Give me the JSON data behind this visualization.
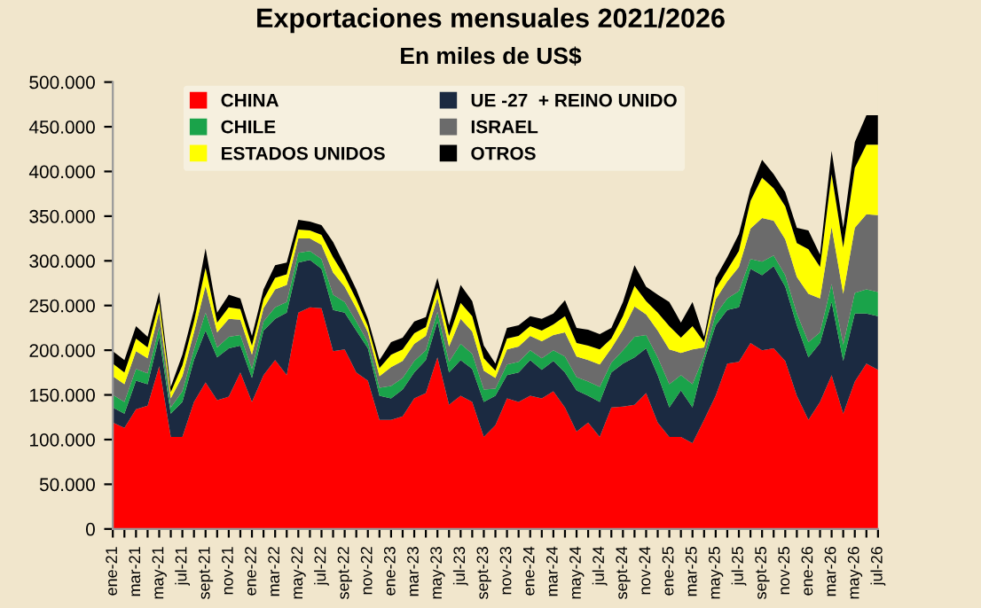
{
  "chart_data": {
    "type": "area",
    "stacked": true,
    "title": "Exportaciones mensuales 2021/2026",
    "subtitle": "En miles de US$",
    "categories": [
      "ene-21",
      null,
      "mar-21",
      null,
      "may-21",
      null,
      "jul-21",
      null,
      "sept-21",
      null,
      "nov-21",
      null,
      "ene-22",
      null,
      "mar-22",
      null,
      "may-22",
      null,
      "jul-22",
      null,
      "sept-22",
      null,
      "nov-22",
      null,
      "ene-23",
      null,
      "mar-23",
      null,
      "may-23",
      null,
      "jul-23",
      null,
      "sept-23",
      null,
      "nov-23",
      null,
      "ene-24",
      null,
      "mar-24",
      null,
      "may-24",
      null,
      "jul-24",
      null,
      "sept-24",
      null,
      "nov-24",
      null,
      "ene-25",
      null,
      "mar-25",
      null,
      "may-25",
      null,
      "jul-25",
      null,
      "sept-25",
      null,
      "nov-25",
      null,
      "ene-26",
      null,
      "mar-26",
      null,
      "may-26",
      null,
      "jul-26"
    ],
    "series": [
      {
        "name": "CHINA",
        "color": "#ff0000",
        "values": [
          119000,
          113000,
          134000,
          138000,
          182000,
          103000,
          103000,
          142000,
          164000,
          144000,
          148000,
          175000,
          142000,
          172000,
          189000,
          172000,
          242000,
          248000,
          247000,
          199000,
          201000,
          175000,
          166000,
          122000,
          122000,
          126000,
          146000,
          152000,
          192000,
          139000,
          149000,
          142000,
          103000,
          116000,
          146000,
          142000,
          149000,
          146000,
          154000,
          136000,
          109000,
          119000,
          103000,
          136000,
          137000,
          139000,
          152000,
          119000,
          103000,
          103000,
          96000,
          122000,
          149000,
          185000,
          187000,
          208000,
          200000,
          202000,
          188000,
          149000,
          122000,
          142000,
          172000,
          129000,
          165000,
          185000,
          178000
        ]
      },
      {
        "name": "UE -27  + REINO UNIDO",
        "color": "#1b2a41",
        "values": [
          17000,
          16000,
          32000,
          24000,
          33000,
          26000,
          39000,
          47000,
          58000,
          48000,
          54000,
          30000,
          27000,
          50000,
          46000,
          70000,
          56000,
          53000,
          44000,
          46000,
          41000,
          47000,
          36000,
          27000,
          24000,
          30000,
          29000,
          37000,
          40000,
          36000,
          40000,
          37000,
          39000,
          33000,
          26000,
          33000,
          40000,
          32000,
          34000,
          39000,
          46000,
          30000,
          39000,
          39000,
          48000,
          53000,
          50000,
          53000,
          33000,
          52000,
          40000,
          66000,
          79000,
          60000,
          61000,
          83000,
          84000,
          92000,
          83000,
          79000,
          70000,
          66000,
          82000,
          59000,
          76000,
          56000,
          60000
        ]
      },
      {
        "name": "CHILE",
        "color": "#1aa34a",
        "values": [
          14000,
          13000,
          13000,
          12000,
          11000,
          7000,
          12000,
          12000,
          20000,
          11000,
          13000,
          12000,
          10000,
          10000,
          13000,
          12000,
          11000,
          10000,
          11000,
          17000,
          12000,
          10000,
          7000,
          9000,
          14000,
          13000,
          13000,
          11000,
          11000,
          12000,
          18000,
          17000,
          14000,
          8000,
          12000,
          12000,
          11000,
          13000,
          12000,
          18000,
          15000,
          16000,
          17000,
          11000,
          15000,
          23000,
          15000,
          20000,
          26000,
          17000,
          26000,
          6000,
          12000,
          13000,
          18000,
          11000,
          15000,
          12000,
          13000,
          13000,
          17000,
          12000,
          20000,
          18000,
          23000,
          27000,
          27000
        ]
      },
      {
        "name": "ISRAEL",
        "color": "#6b6b6b",
        "values": [
          21000,
          20000,
          20000,
          17000,
          17000,
          10000,
          17000,
          19000,
          30000,
          17000,
          20000,
          17000,
          16000,
          15000,
          20000,
          19000,
          16000,
          14000,
          16000,
          25000,
          17000,
          15000,
          11000,
          13000,
          21000,
          19000,
          19000,
          16000,
          16000,
          17000,
          28000,
          25000,
          21000,
          12000,
          17000,
          17000,
          16000,
          19000,
          17000,
          27000,
          23000,
          24000,
          25000,
          16000,
          23000,
          34000,
          23000,
          30000,
          39000,
          25000,
          39000,
          9000,
          17000,
          19000,
          27000,
          34000,
          49000,
          39000,
          40000,
          41000,
          54000,
          38000,
          64000,
          57000,
          73000,
          84000,
          86000
        ]
      },
      {
        "name": "ESTADOS UNIDOS",
        "color": "#ffff00",
        "values": [
          14000,
          13000,
          14000,
          12000,
          11000,
          7000,
          12000,
          12000,
          20000,
          11000,
          13000,
          12000,
          10000,
          10000,
          13000,
          12000,
          10000,
          9000,
          11000,
          17000,
          12000,
          10000,
          7000,
          9000,
          14000,
          13000,
          12000,
          10000,
          11000,
          12000,
          18000,
          17000,
          14000,
          8000,
          12000,
          12000,
          11000,
          12000,
          12000,
          18000,
          15000,
          16000,
          17000,
          11000,
          15000,
          23000,
          15000,
          20000,
          26000,
          17000,
          26000,
          6000,
          12000,
          13000,
          18000,
          31000,
          45000,
          36000,
          37000,
          38000,
          50000,
          35000,
          59000,
          52000,
          67000,
          78000,
          79000
        ]
      },
      {
        "name": "OTROS",
        "color": "#000000",
        "values": [
          14000,
          14000,
          14000,
          12000,
          11000,
          6000,
          12000,
          13000,
          22000,
          11000,
          14000,
          12000,
          11000,
          11000,
          14000,
          13000,
          11000,
          10000,
          11000,
          17000,
          12000,
          11000,
          8000,
          9000,
          14000,
          13000,
          13000,
          11000,
          11000,
          12000,
          20000,
          17000,
          14000,
          8000,
          12000,
          12000,
          11000,
          13000,
          12000,
          18000,
          17000,
          18000,
          17000,
          12000,
          16000,
          23000,
          16000,
          20000,
          27000,
          17000,
          27000,
          6000,
          12000,
          14000,
          19000,
          13000,
          20000,
          16000,
          16000,
          17000,
          21000,
          14000,
          26000,
          22000,
          29000,
          33000,
          33000
        ]
      }
    ],
    "ylim": [
      0,
      500000
    ],
    "yticks": [
      0,
      {
        "value": 50000,
        "label": "50.000"
      },
      {
        "value": 100000,
        "label": "100.000"
      },
      {
        "value": 150000,
        "label": "150.000"
      },
      {
        "value": 200000,
        "label": "200.000"
      },
      {
        "value": 250000,
        "label": "250.000"
      },
      {
        "value": 300000,
        "label": "300.000"
      },
      {
        "value": 350000,
        "label": "350.000"
      },
      {
        "value": 400000,
        "label": "400.000"
      },
      {
        "value": 450000,
        "label": "450.000"
      },
      {
        "value": 500000,
        "label": "500.000"
      }
    ],
    "legend": "top",
    "grid": false
  }
}
